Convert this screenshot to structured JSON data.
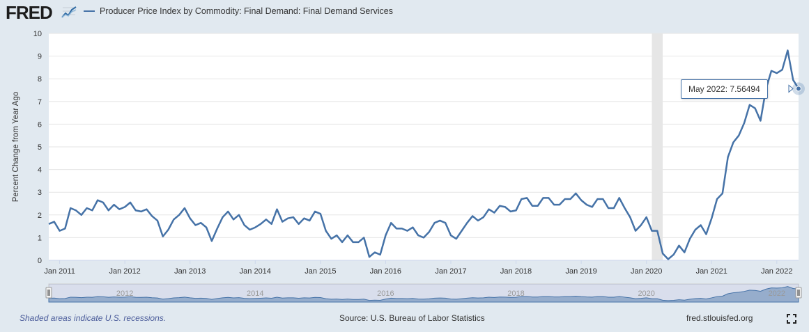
{
  "header": {
    "logo_text": "FRED",
    "series_title": "Producer Price Index by Commodity: Final Demand: Final Demand Services"
  },
  "tooltip": {
    "date": "May 2022:",
    "value": "7.56494"
  },
  "footer": {
    "recession_note": "Shaded areas indicate U.S. recessions.",
    "source": "Source: U.S. Bureau of Labor Statistics",
    "site": "fred.stlouisfed.org"
  },
  "colors": {
    "line": "#4572a7",
    "recession": "#e6e6e6",
    "background": "#e1e9f0"
  },
  "chart_data": {
    "type": "line",
    "title": "Producer Price Index by Commodity: Final Demand: Final Demand Services",
    "ylabel": "Percent Change from Year Ago",
    "xlabel": "",
    "ylim": [
      0,
      10
    ],
    "yticks": [
      "0",
      "1",
      "2",
      "3",
      "4",
      "5",
      "6",
      "7",
      "8",
      "9",
      "10"
    ],
    "xticks": [
      "Jan 2011",
      "Jan 2012",
      "Jan 2013",
      "Jan 2014",
      "Jan 2015",
      "Jan 2016",
      "Jan 2017",
      "Jan 2018",
      "Jan 2019",
      "Jan 2020",
      "Jan 2021",
      "Jan 2022"
    ],
    "navigator_labels": [
      "2012",
      "2014",
      "2016",
      "2018",
      "2020",
      "2022"
    ],
    "x_start": "2010-11",
    "x_end": "2022-05",
    "recessions": [
      {
        "start": "2020-02",
        "end": "2020-04"
      }
    ],
    "grid": true,
    "series": [
      {
        "name": "Producer Price Index by Commodity: Final Demand: Final Demand Services",
        "values": [
          1.6,
          1.7,
          1.3,
          1.4,
          2.3,
          2.2,
          2.0,
          2.3,
          2.2,
          2.65,
          2.55,
          2.2,
          2.45,
          2.25,
          2.35,
          2.55,
          2.2,
          2.15,
          2.25,
          1.95,
          1.75,
          1.05,
          1.35,
          1.8,
          2.0,
          2.3,
          1.85,
          1.55,
          1.65,
          1.45,
          0.85,
          1.4,
          1.9,
          2.15,
          1.8,
          2.0,
          1.55,
          1.35,
          1.45,
          1.6,
          1.8,
          1.6,
          2.25,
          1.7,
          1.85,
          1.9,
          1.6,
          1.85,
          1.75,
          2.15,
          2.05,
          1.3,
          0.95,
          1.1,
          0.8,
          1.1,
          0.8,
          0.8,
          1.0,
          0.15,
          0.35,
          0.25,
          1.1,
          1.65,
          1.4,
          1.4,
          1.3,
          1.45,
          1.1,
          1.0,
          1.25,
          1.65,
          1.75,
          1.65,
          1.1,
          0.95,
          1.3,
          1.65,
          1.95,
          1.75,
          1.9,
          2.25,
          2.1,
          2.4,
          2.35,
          2.15,
          2.2,
          2.7,
          2.75,
          2.4,
          2.4,
          2.75,
          2.75,
          2.45,
          2.45,
          2.7,
          2.7,
          2.95,
          2.65,
          2.45,
          2.35,
          2.7,
          2.7,
          2.3,
          2.3,
          2.75,
          2.3,
          1.9,
          1.3,
          1.55,
          1.9,
          1.3,
          1.3,
          0.3,
          0.05,
          0.25,
          0.65,
          0.35,
          0.95,
          1.35,
          1.55,
          1.15,
          1.85,
          2.7,
          2.95,
          4.55,
          5.2,
          5.5,
          6.05,
          6.85,
          6.7,
          6.15,
          7.55,
          8.35,
          8.25,
          8.4,
          9.25,
          7.95,
          7.56494
        ]
      }
    ]
  }
}
